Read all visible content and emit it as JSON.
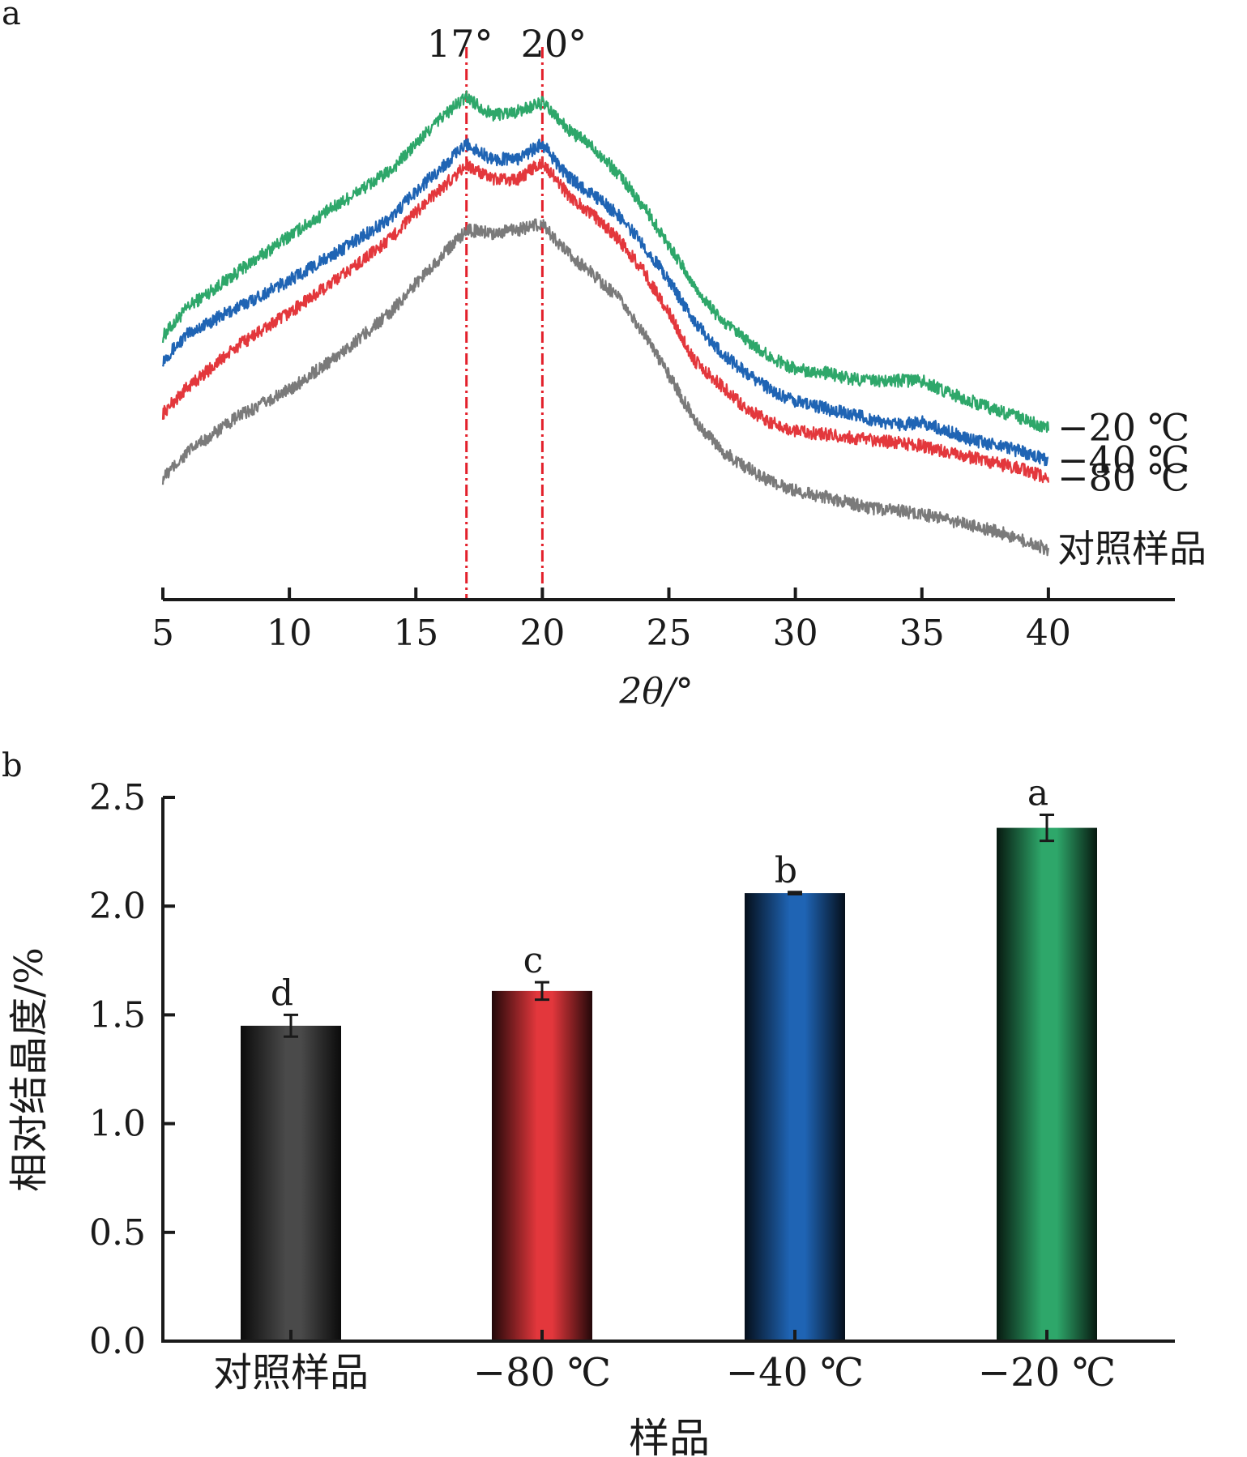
{
  "chart_data": [
    {
      "panel_label": "a",
      "type": "line",
      "xlabel": "2θ/°",
      "xlim": [
        5,
        45
      ],
      "xticks": [
        5,
        10,
        15,
        20,
        25,
        30,
        35,
        40
      ],
      "y_axis": "none (curves vertically offset, intensity in arbitrary units)",
      "reference_lines": [
        {
          "x": 17,
          "label": "17°",
          "color": "#e3202b",
          "style": "dash-dot"
        },
        {
          "x": 20,
          "label": "20°",
          "color": "#e3202b",
          "style": "dash-dot"
        }
      ],
      "series": [
        {
          "name": "−20 ℃",
          "color": "#2ea76a",
          "x": [
            5,
            6,
            8,
            10,
            12,
            14,
            15,
            16,
            17,
            18,
            19,
            20,
            21,
            22,
            23,
            24,
            25,
            26,
            27,
            28,
            29,
            30,
            31,
            32,
            33,
            34,
            35,
            36,
            37,
            38,
            39,
            40
          ],
          "y": [
            44.5,
            49.5,
            55.5,
            61.5,
            67.0,
            72.5,
            77.0,
            81.5,
            85.0,
            82.0,
            82.5,
            84.0,
            79.5,
            76.5,
            72.0,
            66.5,
            60.0,
            53.0,
            47.5,
            44.0,
            41.0,
            39.0,
            38.5,
            37.5,
            37.0,
            37.0,
            37.0,
            35.0,
            33.5,
            32.0,
            30.5,
            29.0
          ]
        },
        {
          "name": "−40 ℃",
          "color": "#1f64b4",
          "x": [
            5,
            6,
            8,
            10,
            12,
            14,
            15,
            16,
            17,
            18,
            19,
            20,
            21,
            22,
            23,
            24,
            25,
            26,
            27,
            28,
            29,
            30,
            31,
            32,
            33,
            34,
            35,
            36,
            37,
            38,
            39,
            40
          ],
          "y": [
            40.5,
            45.0,
            49.5,
            54.0,
            59.0,
            64.5,
            69.0,
            73.0,
            77.0,
            74.5,
            74.5,
            77.0,
            71.5,
            68.5,
            65.0,
            60.0,
            54.0,
            47.0,
            42.0,
            38.5,
            35.5,
            33.5,
            32.5,
            31.5,
            30.5,
            29.5,
            30.0,
            28.5,
            27.0,
            26.0,
            25.0,
            23.5
          ]
        },
        {
          "name": "−80 ℃",
          "color": "#e3373c",
          "x": [
            5,
            6,
            8,
            10,
            12,
            14,
            15,
            16,
            17,
            18,
            19,
            20,
            21,
            22,
            23,
            24,
            25,
            26,
            27,
            28,
            29,
            30,
            31,
            32,
            33,
            34,
            35,
            36,
            37,
            38,
            39,
            40
          ],
          "y": [
            31.5,
            36.0,
            43.0,
            48.5,
            54.5,
            61.0,
            65.5,
            69.5,
            73.5,
            71.0,
            71.0,
            74.0,
            68.5,
            65.0,
            61.0,
            55.5,
            48.5,
            40.5,
            36.5,
            32.5,
            30.0,
            28.5,
            28.0,
            27.5,
            27.0,
            26.5,
            26.0,
            25.0,
            24.0,
            23.0,
            22.0,
            20.5
          ]
        },
        {
          "name": "对照样品",
          "color": "#7a7a7a",
          "x": [
            5,
            6,
            8,
            10,
            12,
            14,
            15,
            16,
            17,
            18,
            19,
            20,
            21,
            22,
            23,
            24,
            25,
            26,
            27,
            28,
            29,
            30,
            31,
            32,
            33,
            34,
            35,
            36,
            37,
            38,
            39,
            40
          ],
          "y": [
            20.5,
            25.0,
            31.0,
            35.5,
            41.5,
            48.5,
            53.5,
            58.0,
            62.5,
            62.0,
            62.5,
            63.5,
            58.5,
            55.0,
            51.0,
            45.0,
            38.0,
            30.5,
            25.5,
            22.5,
            20.0,
            18.5,
            17.5,
            16.5,
            15.5,
            15.0,
            14.5,
            13.5,
            12.5,
            11.5,
            10.0,
            8.5
          ]
        }
      ]
    },
    {
      "panel_label": "b",
      "type": "bar",
      "xlabel": "样品",
      "ylabel": "相对结晶度/%",
      "ylim": [
        0,
        2.5
      ],
      "yticks": [
        0.0,
        0.5,
        1.0,
        1.5,
        2.0,
        2.5
      ],
      "categories": [
        "对照样品",
        "−80 ℃",
        "−40 ℃",
        "−20 ℃"
      ],
      "values": [
        1.45,
        1.61,
        2.06,
        2.36
      ],
      "errors": [
        0.05,
        0.04,
        0.005,
        0.06
      ],
      "significance_letters": [
        "d",
        "c",
        "b",
        "a"
      ],
      "colors": [
        "#4a4a4a",
        "#e3373c",
        "#1f64b4",
        "#2ea76a"
      ]
    }
  ]
}
